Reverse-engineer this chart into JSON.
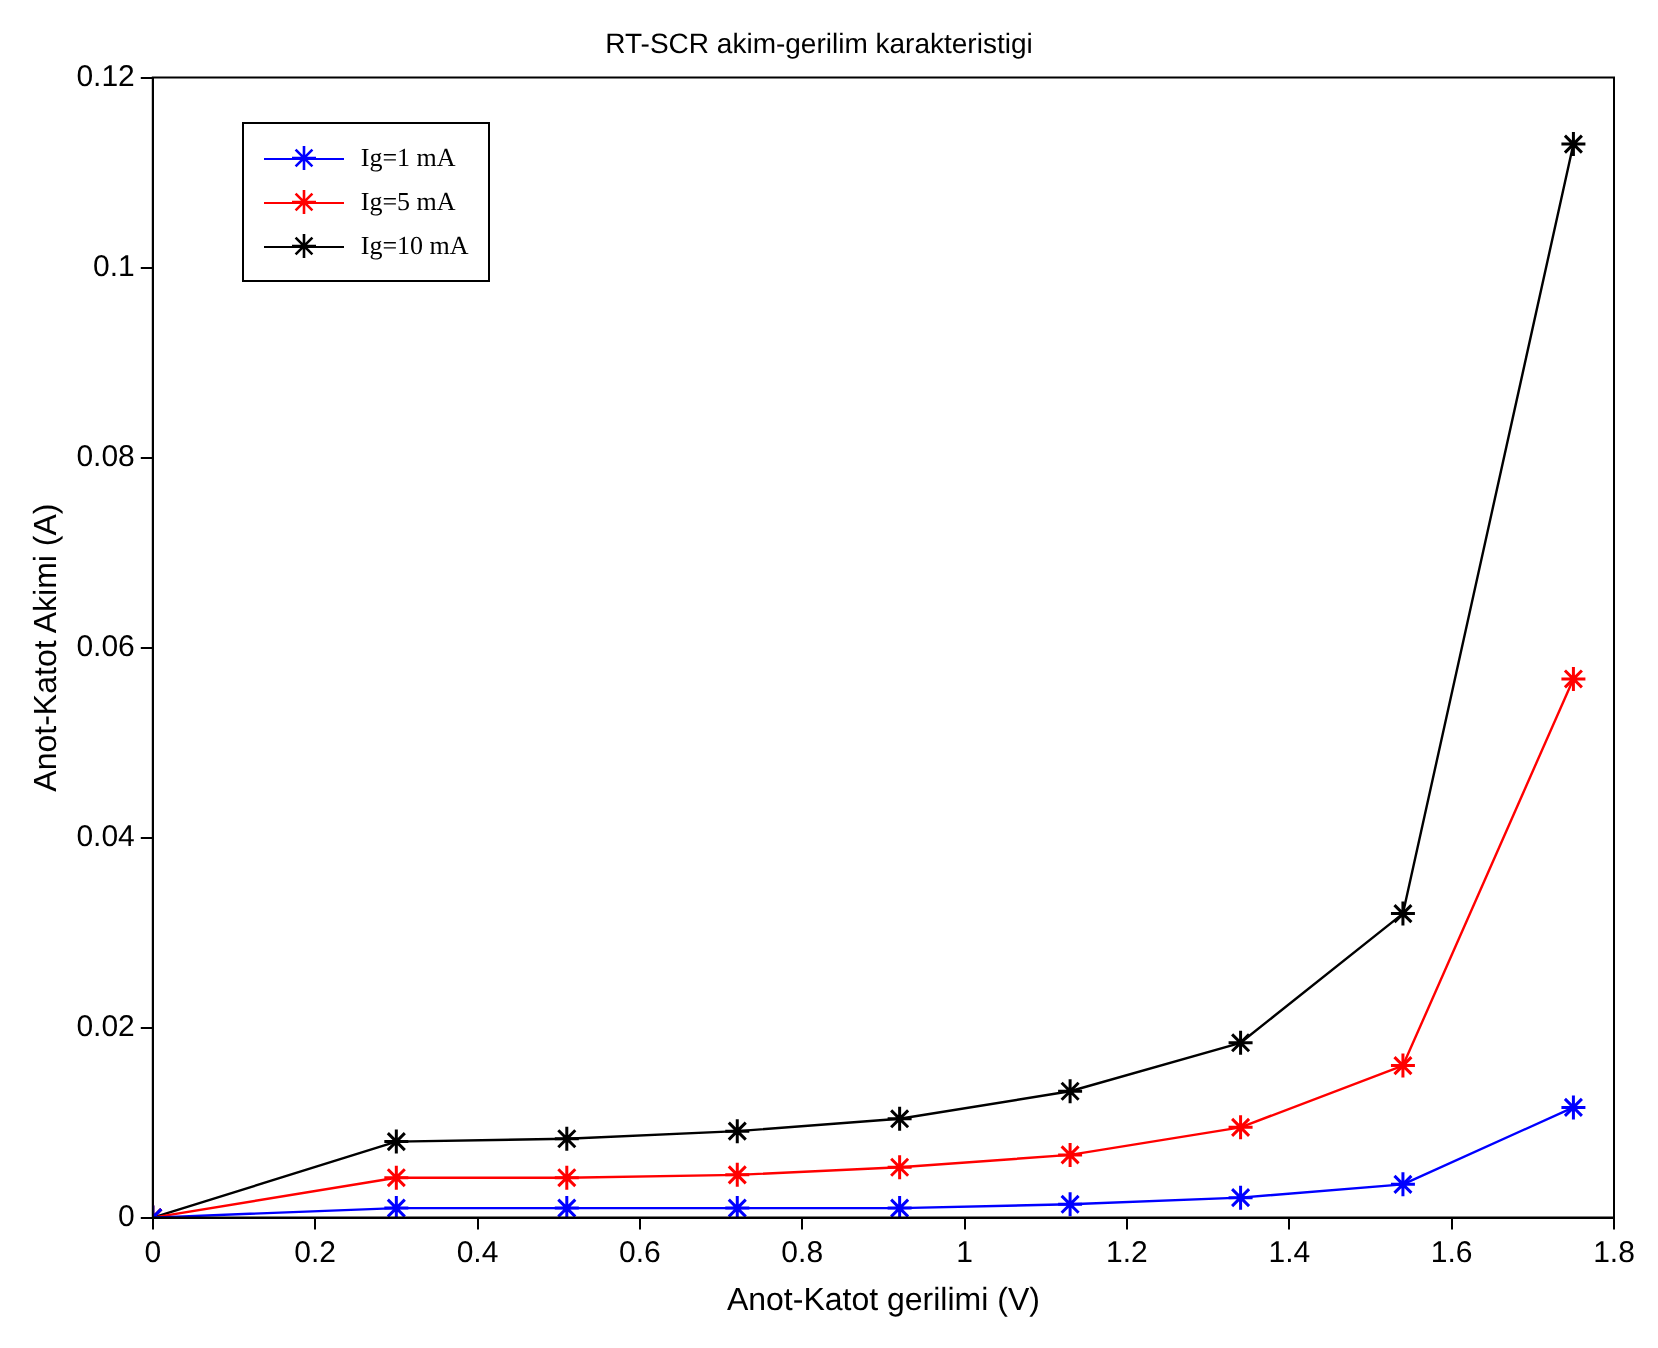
{
  "chart_data": {
    "type": "line",
    "title": "RT-SCR akim-gerilim karakteristigi",
    "xlabel": "Anot-Katot gerilimi (V)",
    "ylabel": "Anot-Katot Akimi (A)",
    "x": [
      0,
      0.3,
      0.51,
      0.72,
      0.92,
      1.13,
      1.34,
      1.54,
      1.75
    ],
    "series": [
      {
        "name": "Ig=1 mA",
        "color": "#0000ff",
        "values": [
          0,
          0.001,
          0.001,
          0.001,
          0.001,
          0.0014,
          0.0021,
          0.0035,
          0.0116
        ]
      },
      {
        "name": "Ig=5 mA",
        "color": "#ff0000",
        "values": [
          0,
          0.0042,
          0.0042,
          0.0045,
          0.0053,
          0.0066,
          0.0095,
          0.016,
          0.0567
        ]
      },
      {
        "name": "Ig=10 mA",
        "color": "#000000",
        "values": [
          0,
          0.008,
          0.0083,
          0.0091,
          0.0104,
          0.0133,
          0.0184,
          0.032,
          0.113
        ]
      }
    ],
    "xlim": [
      0,
      1.8
    ],
    "xticks": [
      0,
      0.2,
      0.4,
      0.6,
      0.8,
      1,
      1.2,
      1.4,
      1.6,
      1.8
    ],
    "ylim": [
      0,
      0.12
    ],
    "yticks": [
      0,
      0.02,
      0.04,
      0.06,
      0.08,
      0.1,
      0.12
    ],
    "grid": false,
    "legend": "top left",
    "marker": "cross",
    "line_style": "solid"
  }
}
